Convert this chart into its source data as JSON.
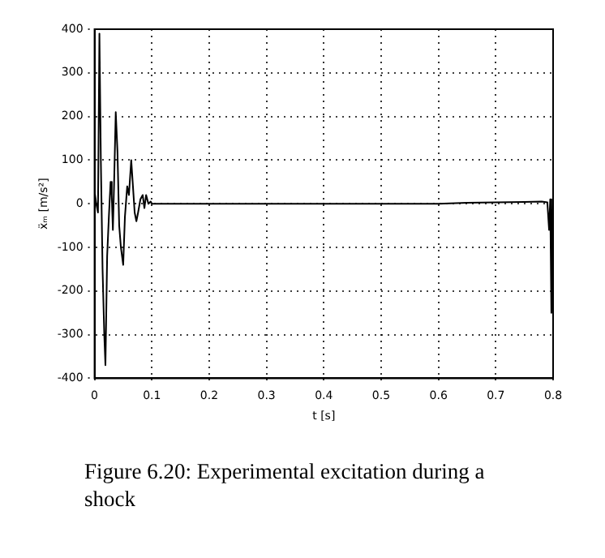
{
  "chart_data": {
    "type": "line",
    "xlabel": "t [s]",
    "ylabel": "ẍₘ [m/s²]",
    "annotations": [
      "Figure 6.20: Experimental excitation during a shock"
    ],
    "series": [
      {
        "color": "#000000",
        "x": [
          0,
          0.003,
          0.006,
          0.0085,
          0.011,
          0.014,
          0.017,
          0.019,
          0.022,
          0.025,
          0.028,
          0.03,
          0.032,
          0.034,
          0.037,
          0.04,
          0.043,
          0.046,
          0.05,
          0.053,
          0.057,
          0.06,
          0.064,
          0.067,
          0.07,
          0.073,
          0.076,
          0.08,
          0.084,
          0.087,
          0.09,
          0.094,
          0.098,
          0.1,
          0.2,
          0.3,
          0.4,
          0.5,
          0.6,
          0.65,
          0.7,
          0.75,
          0.78,
          0.79,
          0.793,
          0.795,
          0.797,
          0.799,
          0.8
        ],
        "values": [
          30,
          0,
          -20,
          390,
          100,
          -150,
          -300,
          -370,
          -120,
          -30,
          50,
          20,
          -60,
          40,
          210,
          120,
          -50,
          -100,
          -140,
          -30,
          40,
          20,
          100,
          40,
          -20,
          -40,
          -20,
          10,
          20,
          -10,
          20,
          0,
          5,
          0,
          0,
          0,
          0,
          0,
          0,
          2,
          3,
          4,
          5,
          3,
          -60,
          10,
          -250,
          -100,
          0
        ]
      }
    ],
    "xlim": [
      0,
      0.8
    ],
    "xticks": [
      0,
      0.1,
      0.2,
      0.3,
      0.4,
      0.5,
      0.6,
      0.7,
      0.8
    ],
    "ylim": [
      -400,
      400
    ],
    "yticks": [
      -400,
      -300,
      -200,
      -100,
      0,
      100,
      200,
      300,
      400
    ],
    "grid": true,
    "legend": false,
    "marker": "none",
    "line_style": "solid"
  }
}
